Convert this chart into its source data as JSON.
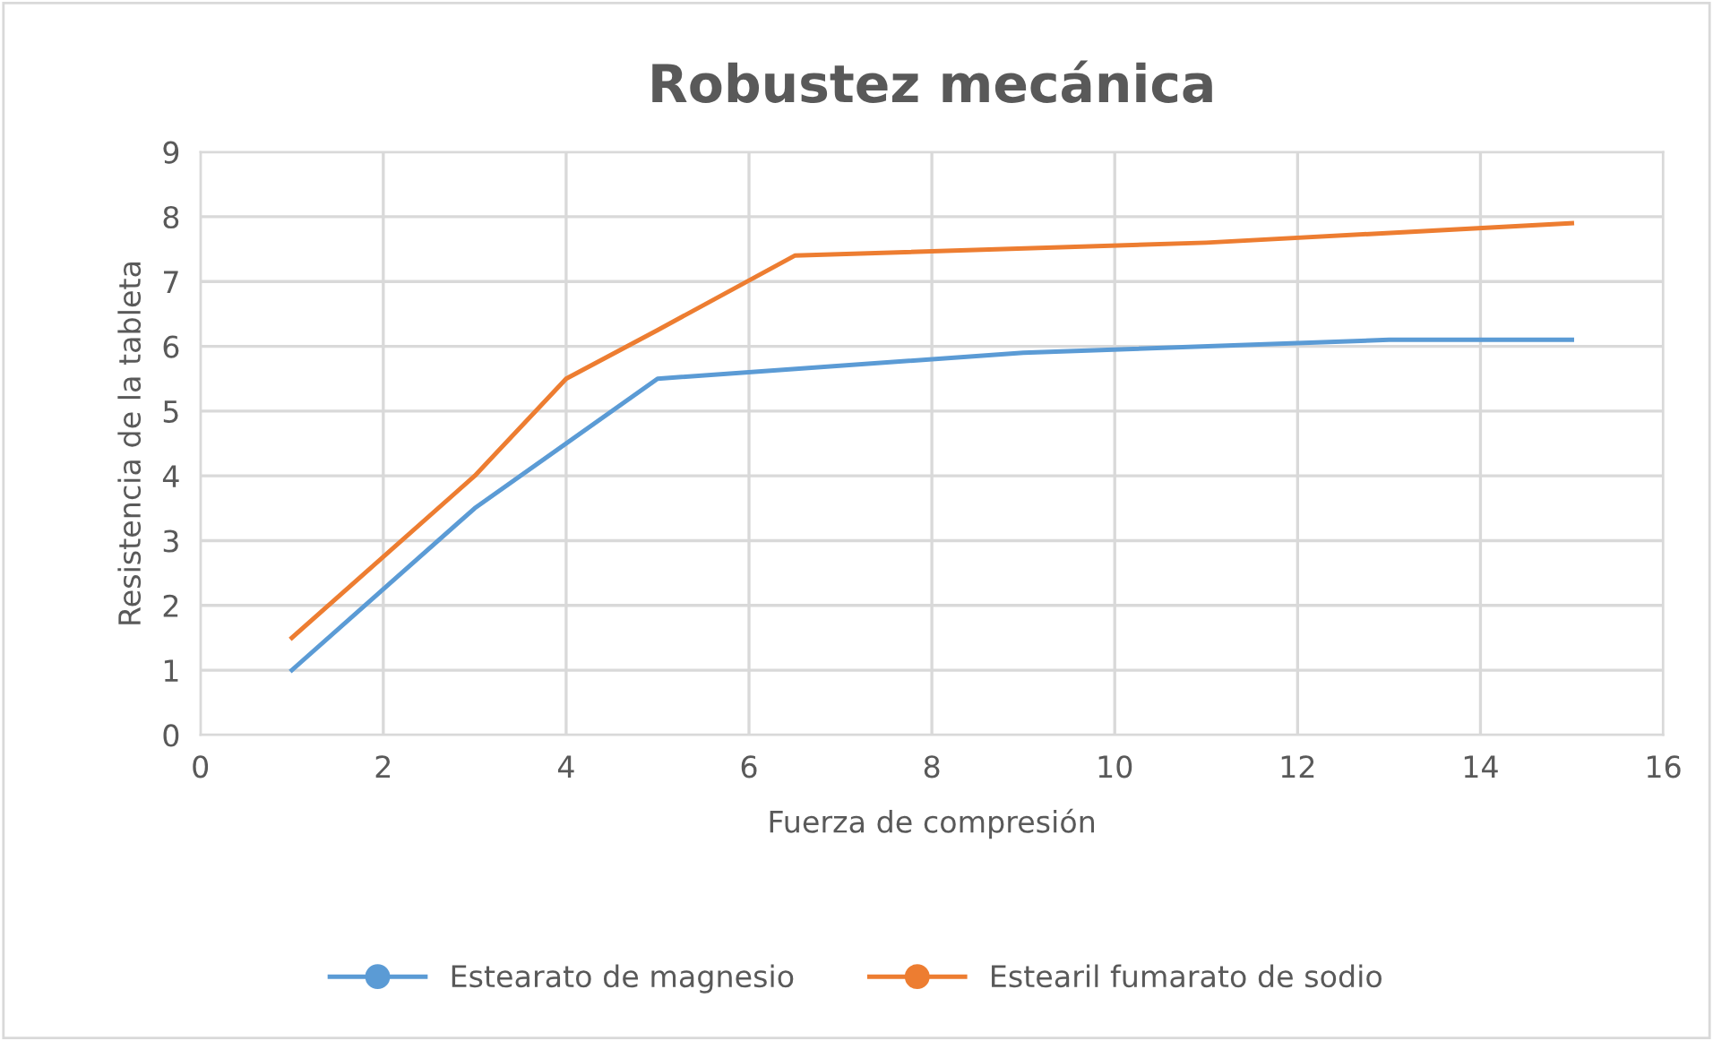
{
  "chart_data": {
    "type": "line",
    "title": "Robustez mecánica",
    "xlabel": "Fuerza de compresión",
    "ylabel": "Resistencia de la tableta",
    "series": [
      {
        "name": "Estearato de magnesio",
        "color": "#5b9bd5",
        "x": [
          1,
          3,
          5,
          9,
          13,
          15
        ],
        "values": [
          1,
          3.5,
          5.5,
          5.9,
          6.1,
          6.1
        ]
      },
      {
        "name": "Estearil fumarato de sodio",
        "color": "#ed7d31",
        "x": [
          1,
          3,
          4,
          5,
          6.5,
          11,
          15
        ],
        "values": [
          1.5,
          4,
          5.5,
          6.25,
          7.4,
          7.6,
          7.9
        ]
      }
    ],
    "xlim": [
      0,
      16
    ],
    "xticks": [
      0,
      2,
      4,
      6,
      8,
      10,
      12,
      14,
      16
    ],
    "ylim": [
      0,
      9
    ],
    "yticks": [
      0,
      1,
      2,
      3,
      4,
      5,
      6,
      7,
      8,
      9
    ],
    "grid": true,
    "legend": "bottom",
    "marker": "none",
    "line_style": "solid"
  }
}
